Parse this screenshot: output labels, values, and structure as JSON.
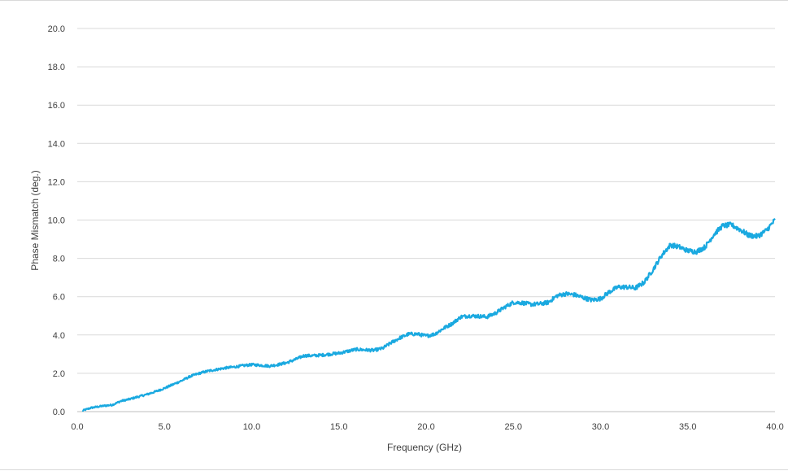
{
  "chart_data": {
    "type": "line",
    "title": "",
    "xlabel": "Frequency (GHz)",
    "ylabel": "Phase Mismatch (deg.)",
    "xlim": [
      0,
      40
    ],
    "ylim": [
      0,
      20
    ],
    "x_ticks": [
      "0.0",
      "5.0",
      "10.0",
      "15.0",
      "20.0",
      "25.0",
      "30.0",
      "35.0",
      "40.0"
    ],
    "y_ticks": [
      "0.0",
      "2.0",
      "4.0",
      "6.0",
      "8.0",
      "10.0",
      "12.0",
      "14.0",
      "16.0",
      "18.0",
      "20.0"
    ],
    "grid": {
      "horizontal": true,
      "vertical": false
    },
    "legend": "none",
    "line_color": "#1aa9e0",
    "grid_color": "#d9d9d9",
    "series": [
      {
        "x": [
          0.3,
          0.8,
          1.5,
          2.0,
          2.5,
          3.0,
          3.5,
          4.0,
          4.5,
          5.0,
          5.5,
          6.0,
          6.5,
          7.0,
          7.5,
          8.0,
          8.5,
          9.0,
          9.5,
          10.0,
          10.5,
          11.0,
          11.5,
          12.0,
          12.5,
          13.0,
          13.5,
          14.0,
          14.5,
          15.0,
          15.5,
          16.0,
          16.5,
          17.0,
          17.5,
          18.0,
          18.5,
          19.0,
          19.5,
          20.0,
          20.5,
          21.0,
          21.5,
          22.0,
          22.5,
          23.0,
          23.5,
          24.0,
          24.5,
          25.0,
          25.5,
          26.0,
          26.5,
          27.0,
          27.5,
          28.0,
          28.5,
          29.0,
          29.5,
          30.0,
          30.5,
          31.0,
          31.5,
          32.0,
          32.5,
          33.0,
          33.5,
          34.0,
          34.5,
          35.0,
          35.5,
          36.0,
          36.5,
          37.0,
          37.5,
          38.0,
          38.5,
          39.0,
          39.5,
          40.0
        ],
        "y": [
          0.05,
          0.2,
          0.3,
          0.35,
          0.55,
          0.65,
          0.78,
          0.9,
          1.05,
          1.22,
          1.42,
          1.62,
          1.85,
          2.0,
          2.12,
          2.2,
          2.28,
          2.33,
          2.4,
          2.45,
          2.42,
          2.38,
          2.45,
          2.55,
          2.72,
          2.92,
          2.92,
          2.95,
          3.0,
          3.05,
          3.15,
          3.25,
          3.22,
          3.2,
          3.3,
          3.6,
          3.85,
          4.05,
          4.05,
          3.95,
          4.05,
          4.35,
          4.6,
          4.95,
          5.0,
          4.98,
          4.95,
          5.15,
          5.45,
          5.7,
          5.68,
          5.6,
          5.62,
          5.7,
          6.05,
          6.15,
          6.1,
          5.95,
          5.82,
          5.9,
          6.25,
          6.5,
          6.5,
          6.45,
          6.75,
          7.4,
          8.15,
          8.7,
          8.6,
          8.4,
          8.35,
          8.6,
          9.25,
          9.7,
          9.75,
          9.5,
          9.2,
          9.15,
          9.45,
          10.0
        ]
      }
    ]
  }
}
